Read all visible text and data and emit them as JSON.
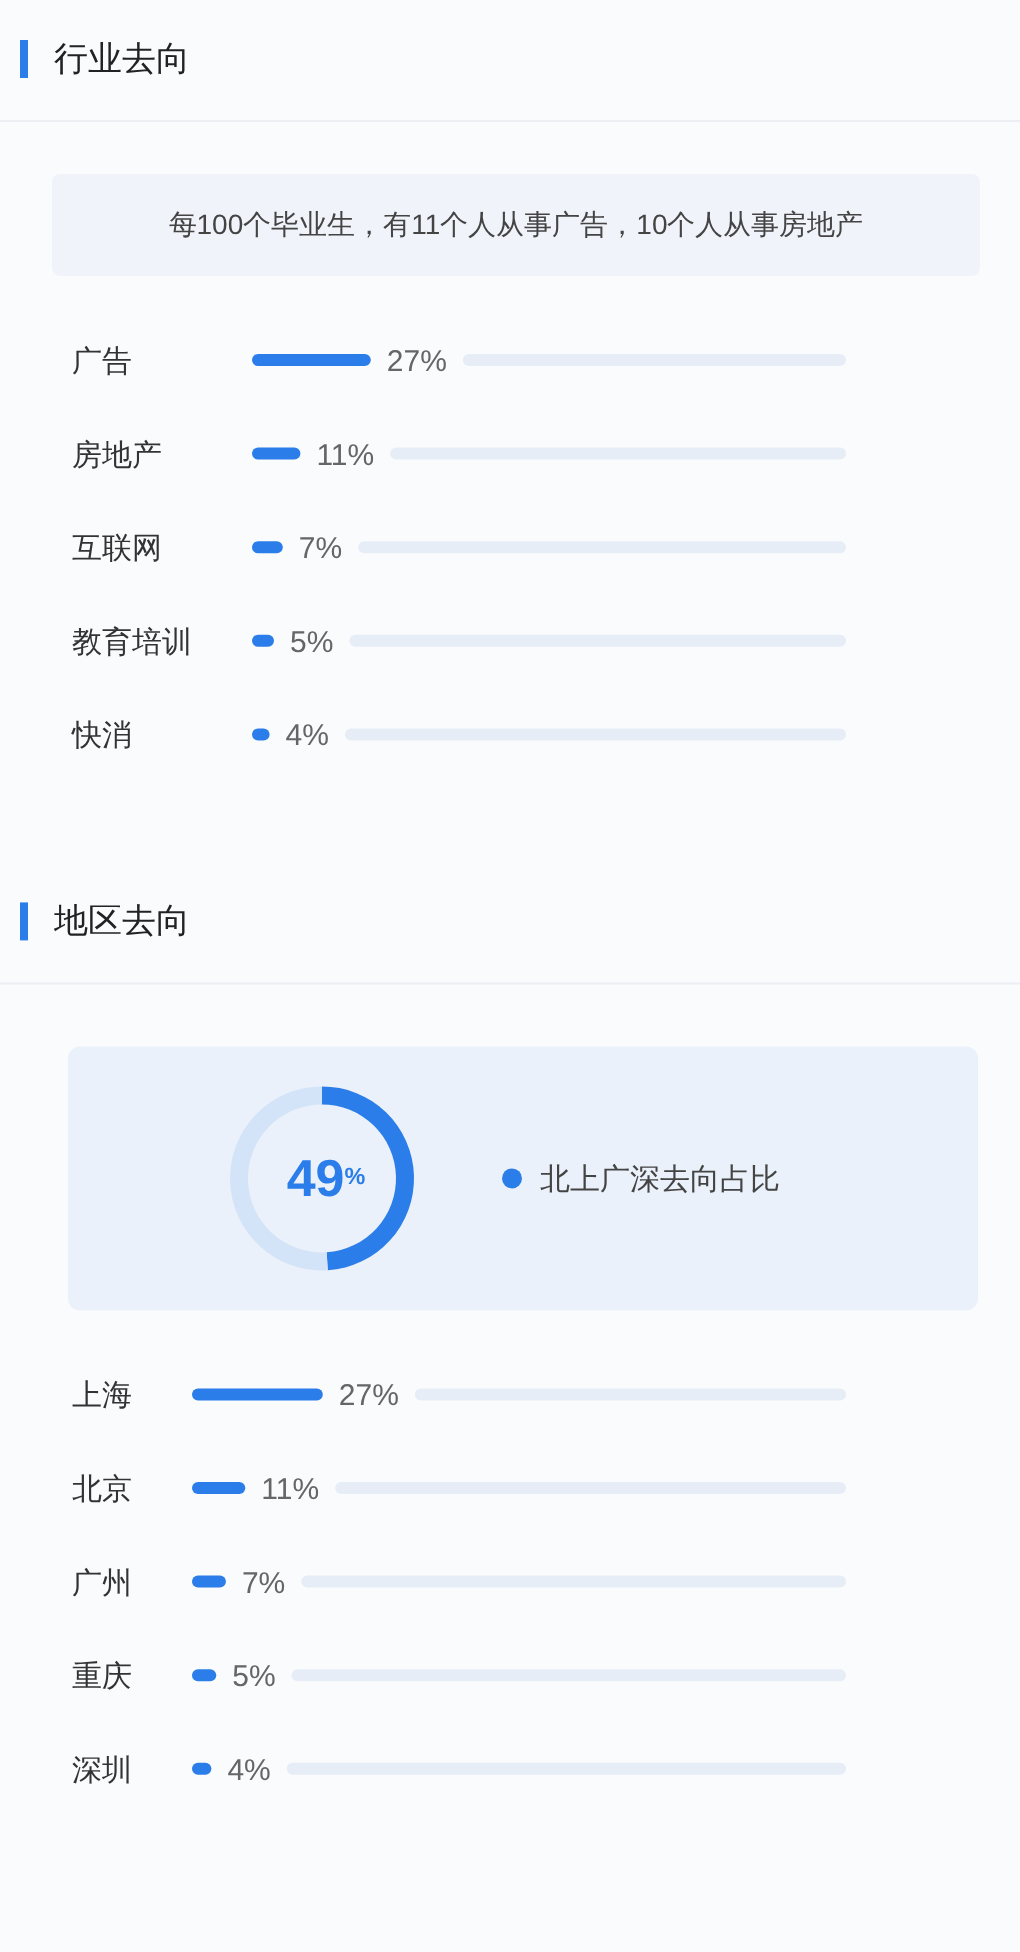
{
  "chart_data": [
    {
      "type": "bar",
      "orientation": "horizontal",
      "title": "行业去向",
      "subtitle": "每100个毕业生，有11个人从事广告，10个人从事房地产",
      "categories": [
        "广告",
        "房地产",
        "互联网",
        "教育培训",
        "快消"
      ],
      "values": [
        27,
        11,
        7,
        5,
        4
      ],
      "value_labels": [
        "27%",
        "11%",
        "7%",
        "5%",
        "4%"
      ],
      "color": "#2b7de9"
    },
    {
      "type": "donut",
      "title": "地区去向",
      "categories": [
        "北上广深去向占比",
        null
      ],
      "values": [
        49,
        51
      ],
      "colors": [
        "#2b7de9",
        "#d3e3f8"
      ],
      "value_labels": [
        "49$^{%}$",
        null
      ],
      "legend": "right"
    },
    {
      "type": "bar",
      "orientation": "horizontal",
      "categories": [
        "上海",
        "北京",
        "广州",
        "重庆",
        "深圳"
      ],
      "values": [
        27,
        11,
        7,
        5,
        4
      ],
      "value_labels": [
        "27%",
        "11%",
        "7%",
        "5%",
        "4%"
      ],
      "color": "#2b7de9"
    }
  ]
}
